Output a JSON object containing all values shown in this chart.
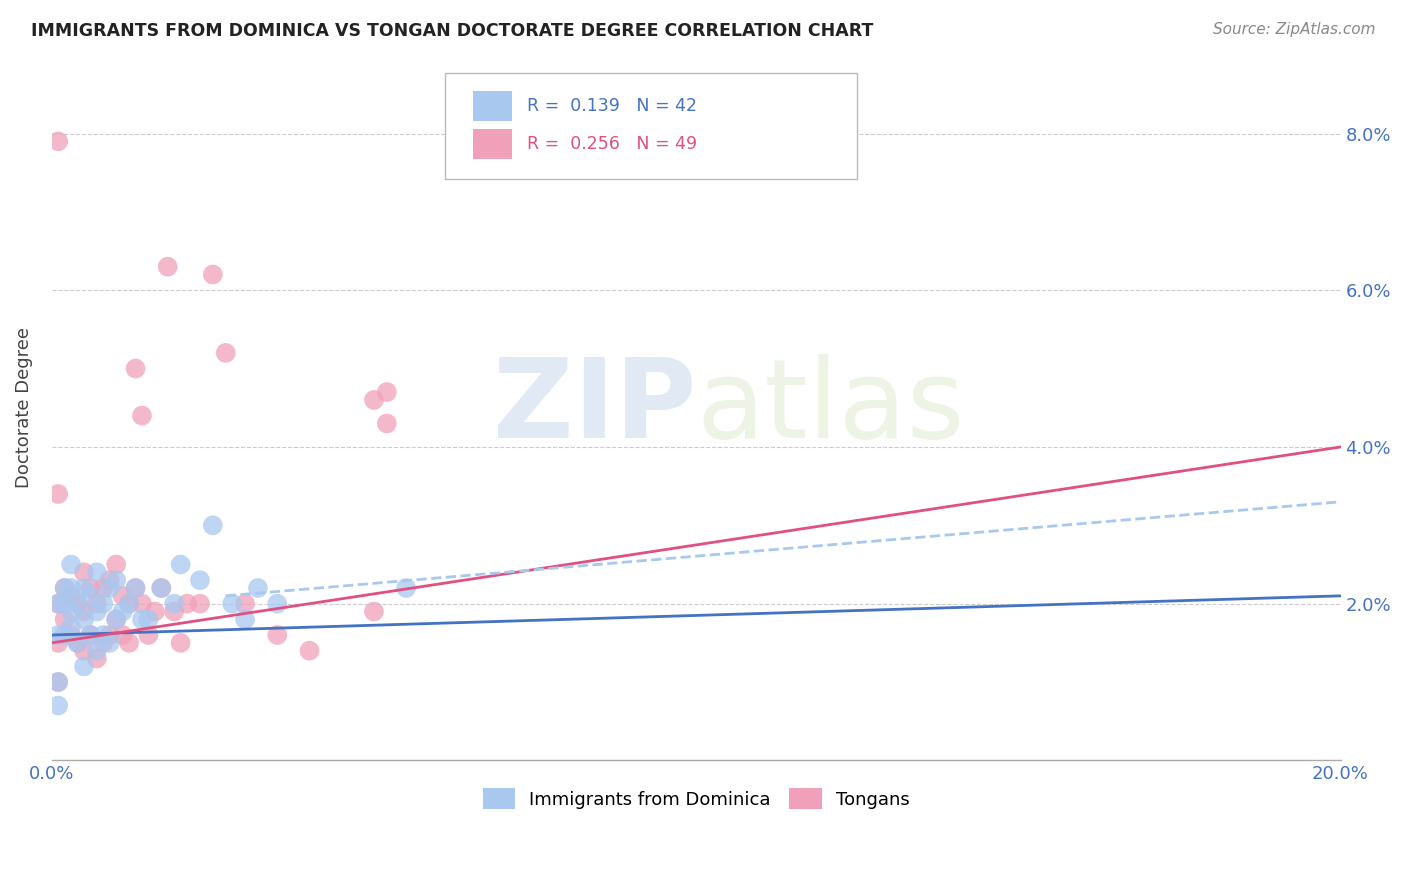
{
  "title": "IMMIGRANTS FROM DOMINICA VS TONGAN DOCTORATE DEGREE CORRELATION CHART",
  "source": "Source: ZipAtlas.com",
  "ylabel": "Doctorate Degree",
  "xlim": [
    0.0,
    0.2
  ],
  "ylim": [
    0.0,
    0.09
  ],
  "xticks": [
    0.0,
    0.05,
    0.1,
    0.15,
    0.2
  ],
  "xtick_labels": [
    "0.0%",
    "",
    "",
    "",
    "20.0%"
  ],
  "yticks": [
    0.0,
    0.02,
    0.04,
    0.06,
    0.08
  ],
  "ytick_labels_right": [
    "",
    "2.0%",
    "4.0%",
    "6.0%",
    "8.0%"
  ],
  "legend_r1_color": "#4472c4",
  "legend_r2_color": "#e05080",
  "color_blue": "#a8c8f0",
  "color_pink": "#f0a0b8",
  "line_color_blue": "#4472c4",
  "line_color_pink": "#e05080",
  "line_color_dashed": "#a8c8f0",
  "watermark_zip": "ZIP",
  "watermark_atlas": "atlas",
  "background_color": "#ffffff",
  "blue_x": [
    0.001,
    0.001,
    0.001,
    0.001,
    0.002,
    0.002,
    0.002,
    0.003,
    0.003,
    0.003,
    0.003,
    0.004,
    0.004,
    0.005,
    0.005,
    0.005,
    0.006,
    0.006,
    0.007,
    0.007,
    0.007,
    0.008,
    0.008,
    0.009,
    0.009,
    0.01,
    0.01,
    0.011,
    0.012,
    0.013,
    0.014,
    0.015,
    0.017,
    0.019,
    0.02,
    0.023,
    0.025,
    0.028,
    0.03,
    0.032,
    0.035,
    0.055
  ],
  "blue_y": [
    0.007,
    0.01,
    0.016,
    0.02,
    0.016,
    0.02,
    0.022,
    0.017,
    0.019,
    0.022,
    0.025,
    0.015,
    0.02,
    0.012,
    0.018,
    0.022,
    0.016,
    0.021,
    0.014,
    0.019,
    0.024,
    0.016,
    0.02,
    0.015,
    0.022,
    0.018,
    0.023,
    0.019,
    0.02,
    0.022,
    0.018,
    0.018,
    0.022,
    0.02,
    0.025,
    0.023,
    0.03,
    0.02,
    0.018,
    0.022,
    0.02,
    0.022
  ],
  "pink_x": [
    0.001,
    0.001,
    0.001,
    0.001,
    0.002,
    0.002,
    0.003,
    0.003,
    0.004,
    0.004,
    0.005,
    0.005,
    0.005,
    0.006,
    0.006,
    0.007,
    0.007,
    0.008,
    0.008,
    0.009,
    0.009,
    0.01,
    0.01,
    0.011,
    0.011,
    0.012,
    0.012,
    0.013,
    0.013,
    0.014,
    0.014,
    0.015,
    0.016,
    0.017,
    0.018,
    0.019,
    0.02,
    0.021,
    0.023,
    0.025,
    0.027,
    0.03,
    0.035,
    0.04,
    0.05,
    0.05,
    0.052,
    0.052,
    0.001
  ],
  "pink_y": [
    0.01,
    0.015,
    0.02,
    0.079,
    0.018,
    0.022,
    0.016,
    0.021,
    0.015,
    0.02,
    0.014,
    0.019,
    0.024,
    0.016,
    0.022,
    0.013,
    0.02,
    0.015,
    0.022,
    0.016,
    0.023,
    0.018,
    0.025,
    0.016,
    0.021,
    0.015,
    0.02,
    0.022,
    0.05,
    0.044,
    0.02,
    0.016,
    0.019,
    0.022,
    0.063,
    0.019,
    0.015,
    0.02,
    0.02,
    0.062,
    0.052,
    0.02,
    0.016,
    0.014,
    0.019,
    0.046,
    0.043,
    0.047,
    0.034
  ],
  "blue_line_x": [
    0.0,
    0.2
  ],
  "blue_line_y": [
    0.016,
    0.021
  ],
  "pink_line_x": [
    0.0,
    0.2
  ],
  "pink_line_y": [
    0.015,
    0.04
  ],
  "dashed_line_x": [
    0.027,
    0.2
  ],
  "dashed_line_y": [
    0.021,
    0.033
  ]
}
